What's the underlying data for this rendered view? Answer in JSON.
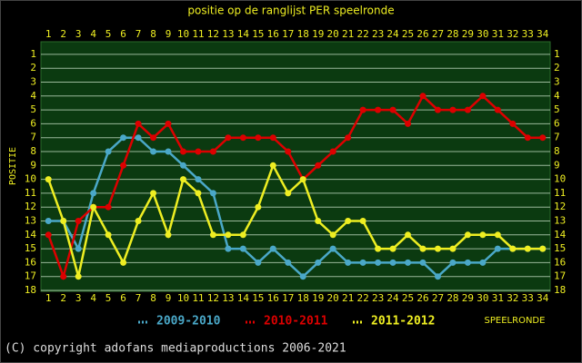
{
  "chart_data": {
    "type": "line",
    "title": "positie op de ranglijst PER speelronde",
    "y_label": "POSITIE",
    "x_label": "SPEELRONDE",
    "footer": "(C) copyright adofans mediaproductions 2006-2021",
    "x": [
      1,
      2,
      3,
      4,
      5,
      6,
      7,
      8,
      9,
      10,
      11,
      12,
      13,
      14,
      15,
      16,
      17,
      18,
      19,
      20,
      21,
      22,
      23,
      24,
      25,
      26,
      27,
      28,
      29,
      30,
      31,
      32,
      33,
      34
    ],
    "xlim": [
      0.5,
      34.5
    ],
    "xticks": [
      1,
      2,
      3,
      4,
      5,
      6,
      7,
      8,
      9,
      10,
      11,
      12,
      13,
      14,
      15,
      16,
      17,
      18,
      19,
      20,
      21,
      22,
      23,
      24,
      25,
      26,
      27,
      28,
      29,
      30,
      31,
      32,
      33,
      34
    ],
    "ylim": [
      0,
      18
    ],
    "yticks": [
      1,
      2,
      3,
      4,
      5,
      6,
      7,
      8,
      9,
      10,
      11,
      12,
      13,
      14,
      15,
      16,
      17,
      18
    ],
    "y_reversed": true,
    "grid": true,
    "series": [
      {
        "name": "2009-2010",
        "color": "#4aa8c8",
        "values": [
          13,
          13,
          15,
          11,
          8,
          7,
          7,
          8,
          8,
          9,
          10,
          11,
          15,
          15,
          16,
          15,
          16,
          17,
          16,
          15,
          16,
          16,
          16,
          16,
          16,
          16,
          17,
          16,
          16,
          16,
          15,
          15,
          15,
          15
        ]
      },
      {
        "name": "2010-2011",
        "color": "#dd0000",
        "values": [
          14,
          17,
          13,
          12,
          12,
          9,
          6,
          7,
          6,
          8,
          8,
          8,
          7,
          7,
          7,
          7,
          8,
          10,
          9,
          8,
          7,
          5,
          5,
          5,
          6,
          4,
          5,
          5,
          5,
          4,
          5,
          6,
          7,
          7
        ]
      },
      {
        "name": "2011-2012",
        "color": "#eeee22",
        "values": [
          10,
          13,
          17,
          12,
          14,
          16,
          13,
          11,
          14,
          10,
          11,
          14,
          14,
          14,
          12,
          9,
          11,
          10,
          13,
          14,
          13,
          13,
          15,
          15,
          14,
          15,
          15,
          15,
          14,
          14,
          14,
          15,
          15,
          15
        ]
      }
    ]
  }
}
